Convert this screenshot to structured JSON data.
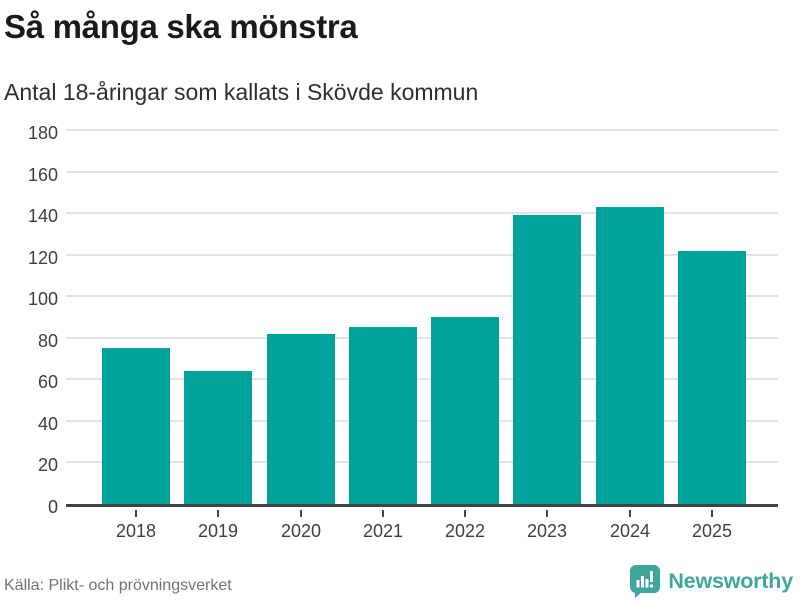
{
  "header": {
    "title": "Så många ska mönstra",
    "subtitle": "Antal 18-åringar som kallats i Skövde kommun"
  },
  "footer": {
    "source": "Källa: Plikt- och prövningsverket",
    "brand": "Newsworthy"
  },
  "colors": {
    "bar": "#00a29a",
    "brand_teal": "#3fa69c",
    "title_text": "#1a1a1a",
    "subtitle_text": "#2e2e2e",
    "axis_text": "#3f3f3f",
    "source_text": "#72727c",
    "gridline": "#e3e3e3",
    "axis_line": "#424242",
    "background": "#ffffff"
  },
  "chart_data": {
    "type": "bar",
    "title": "Så många ska mönstra",
    "subtitle": "Antal 18-åringar som kallats i Skövde kommun",
    "categories": [
      "2018",
      "2019",
      "2020",
      "2021",
      "2022",
      "2023",
      "2024",
      "2025"
    ],
    "values": [
      75,
      64,
      82,
      85,
      90,
      139,
      143,
      122
    ],
    "xlabel": "",
    "ylabel": "",
    "ylim": [
      0,
      180
    ],
    "yticks": [
      0,
      20,
      40,
      60,
      80,
      100,
      120,
      140,
      160,
      180
    ],
    "grid": true,
    "legend": false,
    "bar_color": "#00a29a",
    "source": "Källa: Plikt- och prövningsverket"
  }
}
